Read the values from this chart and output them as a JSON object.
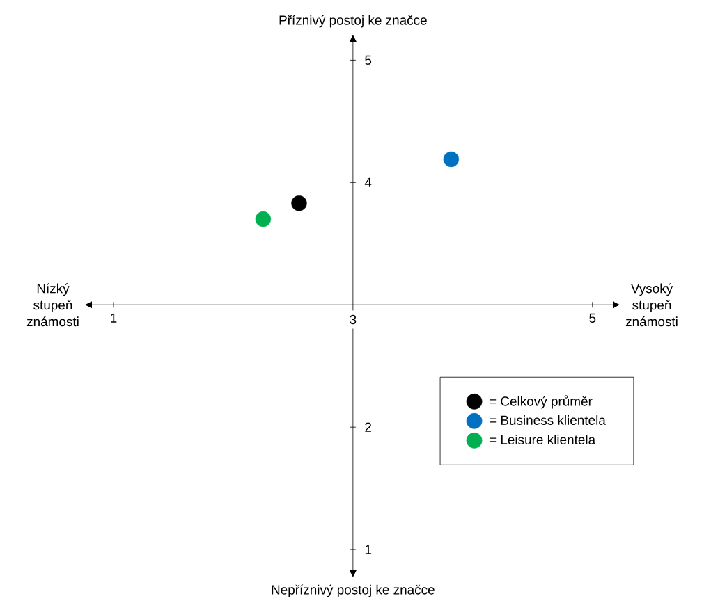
{
  "chart_data": {
    "type": "scatter",
    "xlabel": "Vysoký stupeň známosti",
    "ylabel": "Příznivý postoj ke značce",
    "annotations": [
      "Nízký stupeň známosti",
      "Nepříznivý postoj ke značce"
    ],
    "xlim": [
      0.82,
      5.17
    ],
    "ylim": [
      0.83,
      5.15
    ],
    "xticks": [
      1,
      3,
      5
    ],
    "yticks": [
      1,
      2,
      4,
      5
    ],
    "marker": "circle",
    "legend": "bottom right",
    "series": [
      {
        "name": "= Celkový průměr",
        "color": "#000000",
        "x": [
          2.55
        ],
        "values": [
          3.83
        ]
      },
      {
        "name": "= Business klientela",
        "color": "#0070c0",
        "x": [
          3.82
        ],
        "values": [
          4.19
        ]
      },
      {
        "name": "= Leisure klientela",
        "color": "#00b050",
        "x": [
          2.25
        ],
        "values": [
          3.7
        ]
      }
    ]
  }
}
